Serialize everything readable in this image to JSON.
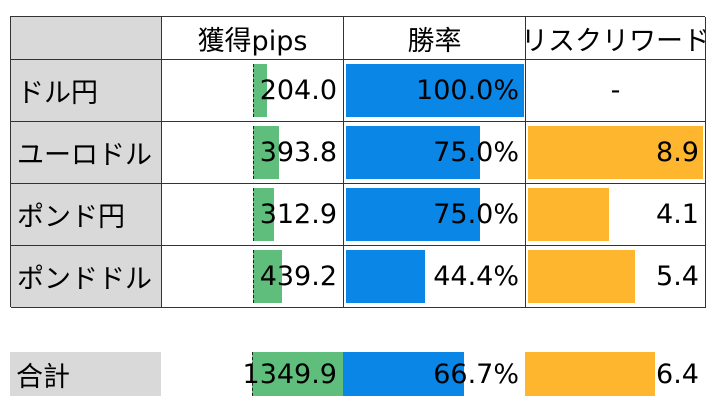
{
  "colors": {
    "header_bg": "#d9d9d9",
    "pips_bar": "#5fbe7c",
    "winrate_bar": "#0a86e6",
    "rr_bar": "#fdb62e",
    "border": "#333333"
  },
  "table": {
    "headers": [
      "",
      "獲得pips",
      "勝率",
      "リスクリワード"
    ],
    "rows": [
      {
        "pair": "ドル円",
        "pips": "204.0",
        "pips_fill": 0.16,
        "winrate": "100.0%",
        "winrate_fill": 1.0,
        "rr": "-",
        "rr_fill": 0.0
      },
      {
        "pair": "ユーロドル",
        "pips": "393.8",
        "pips_fill": 0.29,
        "winrate": "75.0%",
        "winrate_fill": 0.75,
        "rr": "8.9",
        "rr_fill": 1.0
      },
      {
        "pair": "ポンド円",
        "pips": "312.9",
        "pips_fill": 0.23,
        "winrate": "75.0%",
        "winrate_fill": 0.75,
        "rr": "4.1",
        "rr_fill": 0.46
      },
      {
        "pair": "ポンドドル",
        "pips": "439.2",
        "pips_fill": 0.32,
        "winrate": "44.4%",
        "winrate_fill": 0.444,
        "rr": "5.4",
        "rr_fill": 0.61
      }
    ]
  },
  "total": {
    "label": "合計",
    "pips": "1349.9",
    "pips_fill": 1.0,
    "winrate": "66.7%",
    "winrate_fill": 0.667,
    "rr": "6.4",
    "rr_fill": 0.72
  }
}
